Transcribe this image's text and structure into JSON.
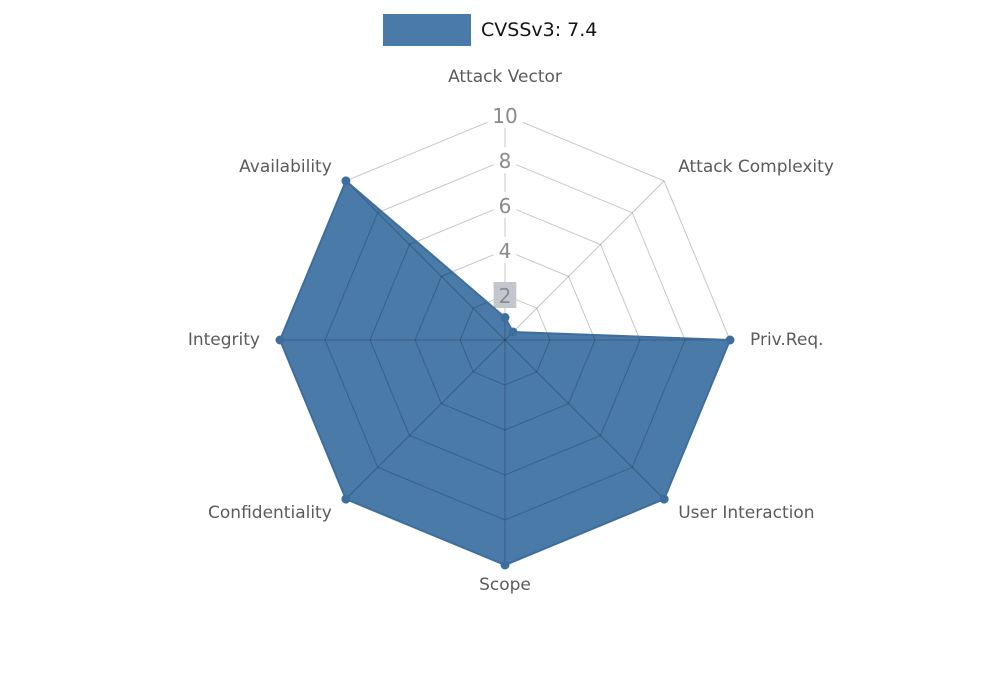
{
  "chart_data": {
    "type": "radar",
    "title": "",
    "legend_label": "CVSSv3: 7.4",
    "legend_position": "top-center",
    "categories": [
      "Attack Vector",
      "Attack Complexity",
      "Priv.Req.",
      "User Interaction",
      "Scope",
      "Confidentiality",
      "Integrity",
      "Availability"
    ],
    "series": [
      {
        "name": "CVSSv3: 7.4",
        "color": "#4a7aa8",
        "edge_color": "#3e6e9e",
        "values": [
          1,
          0.5,
          10,
          10,
          10,
          10,
          10,
          10
        ]
      }
    ],
    "rlim": [
      0,
      10
    ],
    "ticks": [
      {
        "value": 2,
        "label": "2",
        "box_color": "#c3c7cd"
      },
      {
        "value": 4,
        "label": "4",
        "box_color": "#ffffff"
      },
      {
        "value": 6,
        "label": "6",
        "box_color": "#ffffff"
      },
      {
        "value": 8,
        "label": "8",
        "box_color": "#ffffff"
      },
      {
        "value": 10,
        "label": "10",
        "box_color": "#ffffff"
      }
    ],
    "grid": true,
    "colors": {
      "grid": "rgba(0,0,0,0.22)",
      "axis_label": "#5b5b5b",
      "tick_label": "#8a8a8a",
      "background": "#ffffff"
    }
  }
}
